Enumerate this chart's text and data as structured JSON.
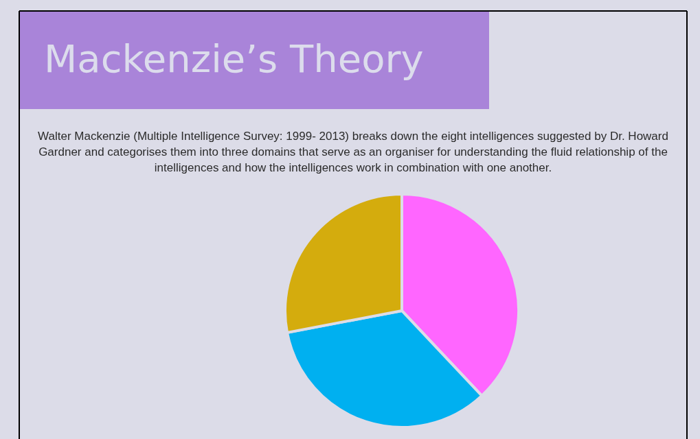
{
  "chart_data": {
    "type": "pie",
    "title": "Mackenzie’s Theory",
    "subtitle": "Walter Mackenzie (Multiple Intelligence Survey: 1999- 2013) breaks down the eight intelligences suggested by Dr. Howard Gardner and categorises them into three domains that serve as an organiser for understanding the fluid relationship of the intelligences and how the intelligences work in combination with one another.",
    "categories": [
      null,
      null,
      null
    ],
    "values": [
      38,
      34,
      28
    ],
    "colors": [
      "#ff66ff",
      "#00b0f0",
      "#d4ac0d"
    ]
  }
}
